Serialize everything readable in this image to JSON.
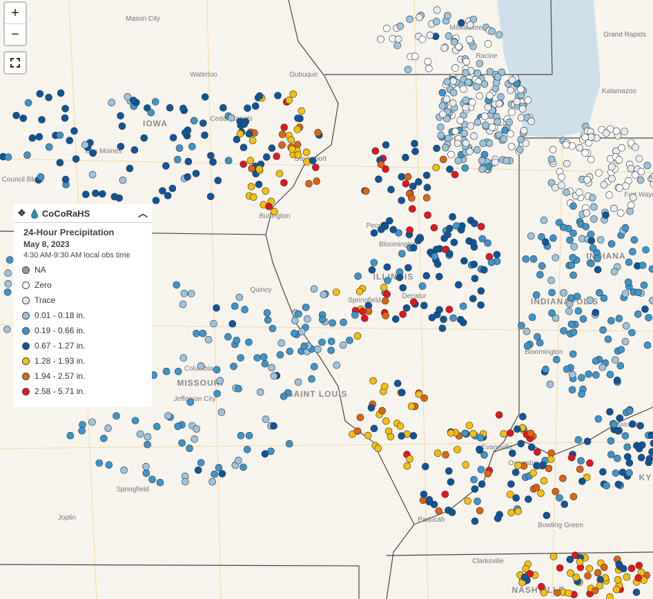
{
  "controls": {
    "zoom_in": "+",
    "zoom_out": "−"
  },
  "legend": {
    "brand": "CoCoRaHS",
    "title": "24-Hour Precipitation",
    "date": "May 8, 2023",
    "obs_time": "4:30 AM-9:30 AM local obs time",
    "items": [
      {
        "label": "NA",
        "color": "#9a9a9a"
      },
      {
        "label": "Zero",
        "color": "#ffffff"
      },
      {
        "label": "Trace",
        "color": "#e6edf5"
      },
      {
        "label": "0.01 - 0.18 in.",
        "color": "#9cc4df"
      },
      {
        "label": "0.19 - 0.66 in.",
        "color": "#3d95cc"
      },
      {
        "label": "0.67 - 1.27 in.",
        "color": "#0c569c"
      },
      {
        "label": "1.28 - 1.93 in.",
        "color": "#f7bf0a"
      },
      {
        "label": "1.94 - 2.57 in.",
        "color": "#df6410"
      },
      {
        "label": "2.58 - 5.71 in.",
        "color": "#e8141c"
      }
    ]
  },
  "map_labels": [
    "Mason City",
    "Waterloo",
    "Dubuque",
    "Cedar Rapids",
    "IOWA",
    "Des Moines",
    "Davenport",
    "Council Bluffs",
    "Burlington",
    "Peoria",
    "Bloomington",
    "ILLINOIS",
    "Springfield",
    "Decatur",
    "Quincy",
    "Columbia",
    "MISSOURI",
    "Jefferson City",
    "SAINT LOUIS",
    "Springfield",
    "Joplin",
    "Evansville",
    "Owensboro",
    "Paducah",
    "Bowling Green",
    "Clarksville",
    "NASHVILLE",
    "Louisville",
    "INDIANA",
    "INDIANAPOLIS",
    "Bloomington",
    "Fort Wayne",
    "Kalamazoo",
    "Grand Rapids",
    "Racine",
    "Milwaukee",
    "Aurora",
    "KY"
  ]
}
